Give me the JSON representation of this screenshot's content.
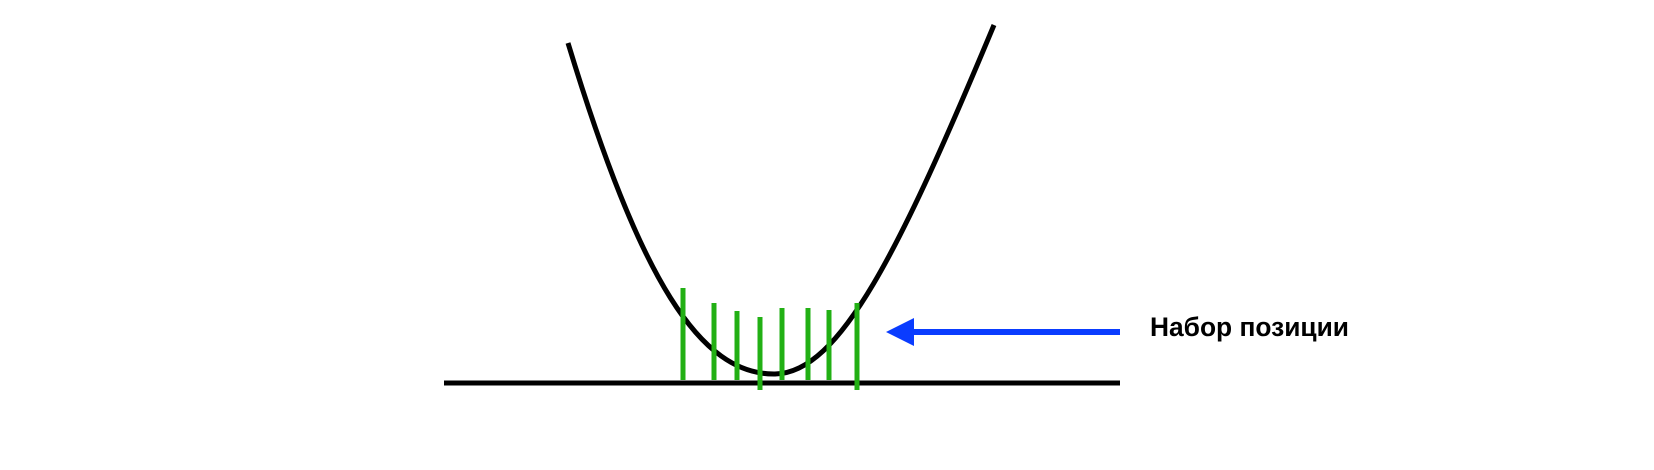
{
  "annotation": {
    "label": "Набор позиции"
  },
  "colors": {
    "background": "#ffffff",
    "curve": "#000000",
    "baseline": "#000000",
    "bars": "#22b014",
    "arrow": "#0a3cff",
    "label": "#000000"
  }
}
